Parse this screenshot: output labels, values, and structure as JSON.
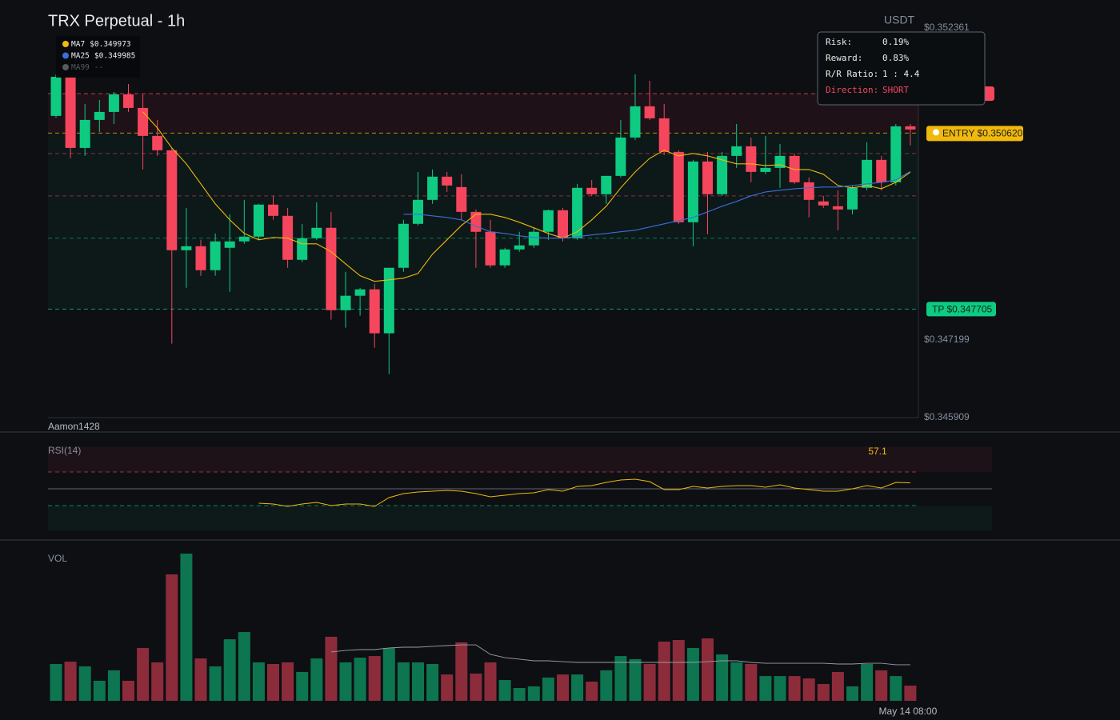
{
  "header": {
    "title": "TRX Perpetual - 1h",
    "currency": "USDT",
    "watermark": "Aamon1428"
  },
  "info": {
    "rows": [
      [
        "Risk:",
        "0.19%"
      ],
      [
        "Reward:",
        "0.83%"
      ],
      [
        "R/R Ratio:",
        "1 : 4.4"
      ],
      [
        "Direction:",
        "SHORT"
      ]
    ]
  },
  "chart_data": [
    {
      "type": "candlestick",
      "up_color": "#0ecb81",
      "down_color": "#f6465d",
      "ylim": [
        0.345909,
        0.352361
      ],
      "yticks": [
        {
          "value": 0.352361,
          "label": "$0.352361"
        },
        {
          "value": 0.347199,
          "label": "$0.347199"
        },
        {
          "value": 0.345909,
          "label": "$0.345909"
        }
      ],
      "open": [
        0.350905,
        0.351553,
        0.350375,
        0.350839,
        0.350971,
        0.351262,
        0.351037,
        0.350574,
        0.350336,
        0.348681,
        0.348747,
        0.34835,
        0.348721,
        0.348827,
        0.348906,
        0.349436,
        0.34925,
        0.348522,
        0.34888,
        0.349052,
        0.347688,
        0.347927,
        0.348033,
        0.347305,
        0.34839,
        0.349118,
        0.349515,
        0.349899,
        0.349727,
        0.349316,
        0.348986,
        0.34843,
        0.348694,
        0.348761,
        0.348986,
        0.349343,
        0.34888,
        0.349714,
        0.349608,
        0.349912,
        0.350547,
        0.351064,
        0.350865,
        0.350309,
        0.349144,
        0.35015,
        0.349608,
        0.350243,
        0.350402,
        0.349978,
        0.350044,
        0.350243,
        0.349806,
        0.349489,
        0.349409,
        0.349356,
        0.349714,
        0.350177,
        0.349806,
        0.350733
      ],
      "high": [
        0.351593,
        0.351553,
        0.351103,
        0.351169,
        0.351302,
        0.351434,
        0.351262,
        0.350839,
        0.350375,
        0.349383,
        0.348853,
        0.348959,
        0.349277,
        0.349515,
        0.349449,
        0.349581,
        0.349383,
        0.349118,
        0.349475,
        0.349316,
        0.348324,
        0.348059,
        0.348125,
        0.34839,
        0.349184,
        0.349978,
        0.350018,
        0.349978,
        0.349939,
        0.349356,
        0.349184,
        0.348721,
        0.348986,
        0.349052,
        0.349356,
        0.349383,
        0.34978,
        0.349846,
        0.349912,
        0.350839,
        0.351593,
        0.351487,
        0.351103,
        0.350336,
        0.350177,
        0.350309,
        0.350309,
        0.350772,
        0.350547,
        0.350574,
        0.350442,
        0.350283,
        0.349886,
        0.349581,
        0.349674,
        0.349753,
        0.350468,
        0.350243,
        0.350772,
        0.350772
      ],
      "low": [
        0.350878,
        0.350203,
        0.350243,
        0.35064,
        0.350772,
        0.350971,
        0.350018,
        0.350243,
        0.347133,
        0.348059,
        0.348258,
        0.348258,
        0.347993,
        0.348787,
        0.348853,
        0.349184,
        0.34839,
        0.348483,
        0.348853,
        0.34753,
        0.347397,
        0.347596,
        0.347066,
        0.34663,
        0.348324,
        0.349091,
        0.349449,
        0.349647,
        0.349184,
        0.34839,
        0.34839,
        0.34839,
        0.348655,
        0.348721,
        0.348853,
        0.348827,
        0.348853,
        0.349581,
        0.349449,
        0.349886,
        0.350508,
        0.350839,
        0.350256,
        0.349118,
        0.348747,
        0.348946,
        0.349581,
        0.350044,
        0.349806,
        0.349939,
        0.349714,
        0.34978,
        0.349224,
        0.349383,
        0.349012,
        0.349277,
        0.349674,
        0.349674,
        0.349753,
        0.350415
      ],
      "close": [
        0.351553,
        0.350375,
        0.350839,
        0.350971,
        0.351262,
        0.351037,
        0.350574,
        0.350336,
        0.348681,
        0.348747,
        0.34835,
        0.348827,
        0.348827,
        0.348906,
        0.349436,
        0.34925,
        0.348522,
        0.34888,
        0.349052,
        0.347688,
        0.347927,
        0.348033,
        0.347305,
        0.34839,
        0.349118,
        0.349515,
        0.349899,
        0.349753,
        0.349316,
        0.348986,
        0.34843,
        0.348694,
        0.348761,
        0.348986,
        0.349343,
        0.34888,
        0.349714,
        0.349608,
        0.349912,
        0.350547,
        0.351064,
        0.350865,
        0.350309,
        0.349144,
        0.35015,
        0.349608,
        0.350243,
        0.350402,
        0.349978,
        0.350044,
        0.350243,
        0.349806,
        0.349515,
        0.349422,
        0.349356,
        0.349714,
        0.350177,
        0.349806,
        0.350733,
        0.35068
      ],
      "series": [
        {
          "name": "MA7",
          "color": "#f0b90b",
          "last_label": "$0.349973",
          "values": [
            null,
            null,
            null,
            null,
            null,
            null,
            0.350971,
            0.350706,
            0.350375,
            0.350111,
            0.34978,
            0.349449,
            0.349184,
            0.348959,
            0.348853,
            0.348893,
            0.34888,
            0.348787,
            0.348787,
            0.348655,
            0.348456,
            0.348258,
            0.348165,
            0.348191,
            0.348218,
            0.348297,
            0.348615,
            0.348853,
            0.349091,
            0.349277,
            0.349277,
            0.349224,
            0.349144,
            0.349052,
            0.348959,
            0.34888,
            0.348986,
            0.349184,
            0.349409,
            0.349714,
            0.349978,
            0.350203,
            0.350336,
            0.350243,
            0.350283,
            0.350243,
            0.350177,
            0.350111,
            0.350111,
            0.350084,
            0.350097,
            0.350018,
            0.350018,
            0.349939,
            0.349753,
            0.349714,
            0.349753,
            0.3497,
            0.349806,
            0.349973
          ]
        },
        {
          "name": "MA25",
          "color": "#3b6fd8",
          "last_label": "$0.349985",
          "values": [
            null,
            null,
            null,
            null,
            null,
            null,
            null,
            null,
            null,
            null,
            null,
            null,
            null,
            null,
            null,
            null,
            null,
            null,
            null,
            null,
            null,
            null,
            null,
            null,
            0.349277,
            0.349277,
            0.34925,
            0.349224,
            0.349184,
            0.349078,
            0.348986,
            0.348959,
            0.348919,
            0.348893,
            0.34888,
            0.34888,
            0.348906,
            0.348933,
            0.348959,
            0.348986,
            0.349012,
            0.349065,
            0.349118,
            0.349171,
            0.349224,
            0.349316,
            0.349409,
            0.349489,
            0.349581,
            0.349647,
            0.349674,
            0.3497,
            0.349714,
            0.349727,
            0.349727,
            0.349753,
            0.34978,
            0.349806,
            0.349846,
            0.349985
          ]
        },
        {
          "name": "MA99",
          "color": "#555a60",
          "last_label": "--"
        }
      ],
      "trade": {
        "stop": {
          "value": 0.351275,
          "color": "#f6465d"
        },
        "entry": {
          "value": 0.35062,
          "label": "ENTRY $0.350620",
          "color": "#f0b90b"
        },
        "tp": {
          "value": 0.347705,
          "label": "TP $0.347705",
          "color": "#0ecb81"
        }
      },
      "levels": [
        {
          "value": 0.350283,
          "color": "#f6465d"
        },
        {
          "value": 0.349581,
          "color": "#f6465d"
        },
        {
          "value": 0.34888,
          "color": "#0ecb81"
        }
      ]
    },
    {
      "type": "line",
      "title": "RSI(14)",
      "color": "#f0b90b",
      "ylim": [
        0,
        100
      ],
      "levels": [
        70,
        50,
        30
      ],
      "values": [
        null,
        null,
        null,
        null,
        null,
        null,
        null,
        null,
        null,
        null,
        null,
        null,
        null,
        null,
        32.9,
        31.9,
        29.0,
        31.9,
        33.8,
        30.0,
        31.9,
        31.9,
        29.0,
        39.5,
        44.3,
        46.2,
        47.1,
        48.1,
        47.1,
        44.3,
        40.5,
        42.4,
        44.3,
        45.2,
        49.0,
        47.1,
        52.9,
        53.8,
        57.6,
        60.5,
        61.4,
        58.6,
        49.0,
        49.0,
        52.9,
        51.0,
        52.9,
        53.8,
        53.8,
        51.9,
        54.8,
        51.0,
        49.0,
        47.1,
        47.1,
        50.0,
        53.8,
        51.0,
        57.6,
        57.1
      ]
    },
    {
      "type": "bar",
      "title": "VOL",
      "ylim": [
        0,
        100
      ],
      "categories": [
        null,
        null,
        null,
        null,
        null,
        null,
        null,
        null,
        null,
        null,
        null,
        null,
        null,
        null,
        null,
        null,
        null,
        null,
        null,
        null,
        null,
        null,
        null,
        null,
        null,
        null,
        null,
        null,
        null,
        null,
        null,
        null,
        null,
        null,
        null,
        null,
        null,
        null,
        null,
        null,
        null,
        null,
        null,
        null,
        null,
        null,
        null,
        null,
        null,
        null,
        null,
        null,
        null,
        null,
        null,
        null,
        null,
        null,
        null,
        "May 14 08:00"
      ],
      "values": [
        25.0,
        26.6,
        23.4,
        13.6,
        20.7,
        13.6,
        35.9,
        26.1,
        85.9,
        100.0,
        28.8,
        23.4,
        41.8,
        46.7,
        26.1,
        25.0,
        26.1,
        19.6,
        28.8,
        43.5,
        26.1,
        29.3,
        30.4,
        35.9,
        26.1,
        26.1,
        25.0,
        17.9,
        39.7,
        18.5,
        26.1,
        14.1,
        8.7,
        9.8,
        15.8,
        17.9,
        17.9,
        13.0,
        20.7,
        30.4,
        28.3,
        25.0,
        40.2,
        41.3,
        35.9,
        42.4,
        31.5,
        26.1,
        25.0,
        16.8,
        16.8,
        16.8,
        15.2,
        11.4,
        19.6,
        9.8,
        25.0,
        20.7,
        16.8,
        10.3
      ],
      "ma": {
        "color": "#9a9da3",
        "values": [
          null,
          null,
          null,
          null,
          null,
          null,
          null,
          null,
          null,
          null,
          null,
          null,
          null,
          null,
          null,
          null,
          null,
          null,
          null,
          33.2,
          34.2,
          34.8,
          34.8,
          35.9,
          36.4,
          36.4,
          37.0,
          37.5,
          38.0,
          38.0,
          31.5,
          29.3,
          28.3,
          27.2,
          27.2,
          26.6,
          26.1,
          26.1,
          26.1,
          26.1,
          26.1,
          26.1,
          26.1,
          26.1,
          26.1,
          26.6,
          27.2,
          27.2,
          26.1,
          25.5,
          25.5,
          25.5,
          25.5,
          25.5,
          25.0,
          25.0,
          25.5,
          25.5,
          24.5,
          24.5
        ]
      }
    }
  ]
}
